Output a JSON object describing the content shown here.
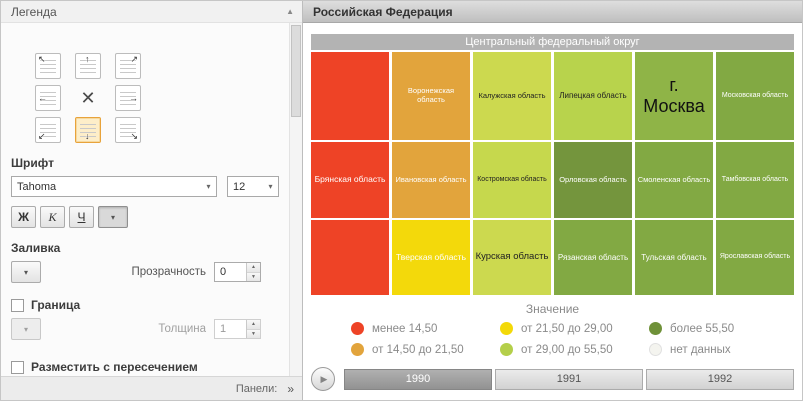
{
  "icons": {
    "collapse": "▲",
    "chevron_down": "▾",
    "spinner_up": "▲",
    "spinner_down": "▼",
    "double_chevron": "»",
    "play": "▶",
    "cross": "✕"
  },
  "left_panel": {
    "header": {
      "title": "Легенда"
    },
    "position_grid": {
      "items": [
        {
          "name": "top-left",
          "arrow": "↖",
          "selected": false
        },
        {
          "name": "top-center",
          "arrow": "↑",
          "selected": false
        },
        {
          "name": "top-right",
          "arrow": "↗",
          "selected": false
        },
        {
          "name": "middle-left",
          "arrow": "←",
          "selected": false
        },
        {
          "name": "none",
          "arrow": "✕",
          "selected": false
        },
        {
          "name": "middle-right",
          "arrow": "→",
          "selected": false
        },
        {
          "name": "bottom-left",
          "arrow": "↙",
          "selected": false
        },
        {
          "name": "bottom-center",
          "arrow": "↓",
          "selected": true
        },
        {
          "name": "bottom-right",
          "arrow": "↘",
          "selected": false
        }
      ]
    },
    "font_section": {
      "label": "Шрифт",
      "font_family_value": "Tahoma",
      "font_size_value": "12",
      "bold_label": "Ж",
      "italic_label": "К",
      "underline_label": "Ч"
    },
    "fill_section": {
      "label": "Заливка",
      "transparency_label": "Прозрачность",
      "transparency_value": "0"
    },
    "border_section": {
      "label": "Граница",
      "checked": false,
      "thickness_label": "Толщина",
      "thickness_value": "1"
    },
    "intersection_checkbox": {
      "label": "Разместить с пересечением",
      "checked": false
    },
    "footer": {
      "label": "Панели:"
    }
  },
  "right_panel": {
    "title": "Российская Федерация",
    "map": {
      "header": "Центральный федеральный округ",
      "rows": [
        {
          "tiles": [
            {
              "label": "",
              "color": "#ee4326",
              "tc": "#ffffff"
            },
            {
              "label": "Воронежская область",
              "color": "#e2a43c",
              "tc": "#ffffff",
              "fs": 7.5
            },
            {
              "label": "Калужская область",
              "color": "#ccd94f",
              "tc": "#222222",
              "fs": 7.5
            },
            {
              "label": "Липецкая область",
              "color": "#b8d34c",
              "tc": "#222222",
              "fs": 8
            },
            {
              "label": "г. Москва",
              "color": "#8fb447",
              "tc": "#111111",
              "fs": 18
            },
            {
              "label": "Московская область",
              "color": "#82a943",
              "tc": "#ffffff",
              "fs": 7
            }
          ]
        },
        {
          "tiles": [
            {
              "label": "Брянская область",
              "color": "#ee4326",
              "tc": "#ffffff",
              "fs": 8.5
            },
            {
              "label": "Ивановская область",
              "color": "#e2a43c",
              "tc": "#ffffff",
              "fs": 7.5
            },
            {
              "label": "Костромская область",
              "color": "#c6d84d",
              "tc": "#222222",
              "fs": 7
            },
            {
              "label": "Орловская область",
              "color": "#74953d",
              "tc": "#ffffff",
              "fs": 7.5
            },
            {
              "label": "Смоленская область",
              "color": "#82a943",
              "tc": "#ffffff",
              "fs": 7.5
            },
            {
              "label": "Тамбовская область",
              "color": "#82a943",
              "tc": "#ffffff",
              "fs": 7
            }
          ]
        },
        {
          "tiles": [
            {
              "label": "",
              "color": "#ee4326",
              "tc": "#ffffff"
            },
            {
              "label": "Тверская область",
              "color": "#f3d90b",
              "tc": "#ffffff",
              "fs": 8.5
            },
            {
              "label": "Курская область",
              "color": "#ccd94f",
              "tc": "#222222",
              "fs": 9.5
            },
            {
              "label": "Рязанская область",
              "color": "#82a943",
              "tc": "#ffffff",
              "fs": 8
            },
            {
              "label": "Тульская область",
              "color": "#82a943",
              "tc": "#ffffff",
              "fs": 8
            },
            {
              "label": "Ярославская область",
              "color": "#82a943",
              "tc": "#ffffff",
              "fs": 7
            }
          ]
        }
      ]
    },
    "legend": {
      "title": "Значение",
      "items": [
        {
          "label": "менее 14,50",
          "color": "#ee4326",
          "light": false
        },
        {
          "label": "от 14,50 до 21,50",
          "color": "#e2a43c",
          "light": false
        },
        {
          "label": "от 21,50 до 29,00",
          "color": "#f3d908",
          "light": false
        },
        {
          "label": "от 29,00 до 55,50",
          "color": "#b4cf4a",
          "light": false
        },
        {
          "label": "более 55,50",
          "color": "#6f9138",
          "light": false
        },
        {
          "label": "нет данных",
          "color": "#f4f4ef",
          "light": true
        }
      ]
    },
    "timeline": {
      "years": [
        {
          "label": "1990",
          "selected": true
        },
        {
          "label": "1991",
          "selected": false
        },
        {
          "label": "1992",
          "selected": false
        }
      ]
    }
  }
}
